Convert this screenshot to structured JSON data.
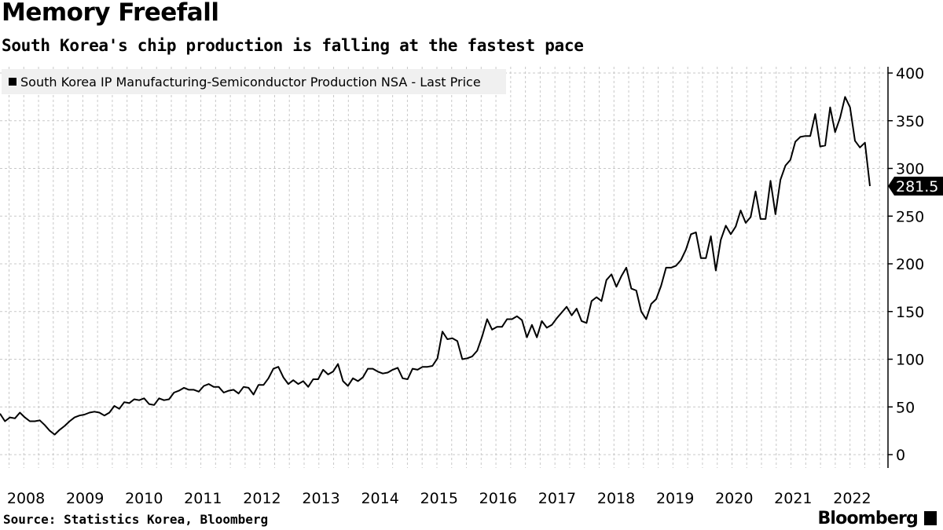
{
  "header": {
    "title": "Memory Freefall",
    "subtitle": "South Korea's chip production is falling at the fastest pace"
  },
  "footer": {
    "source": "Source:  Statistics Korea, Bloomberg",
    "brand": "Bloomberg"
  },
  "chart_data": {
    "type": "line",
    "title": "Memory Freefall",
    "subtitle": "South Korea's chip production is falling at the fastest pace",
    "legend": {
      "label": "South Korea IP Manufacturing-Semiconductor Production NSA - Last Price",
      "placement": "top-left"
    },
    "xlabel": "",
    "ylabel": "",
    "x_frequency": "monthly",
    "x_start": "2008-01",
    "x_ticks": [
      "2008",
      "2009",
      "2010",
      "2011",
      "2012",
      "2013",
      "2014",
      "2015",
      "2016",
      "2017",
      "2018",
      "2019",
      "2020",
      "2021",
      "2022"
    ],
    "y_ticks": [
      0,
      50,
      100,
      150,
      200,
      250,
      300,
      350,
      400
    ],
    "ylim": [
      -10,
      412
    ],
    "grid": true,
    "y_axis_side": "right",
    "last_value_label": "281.5",
    "color": "#000000",
    "series": [
      {
        "name": "South Korea IP Manufacturing-Semiconductor Production NSA - Last Price",
        "values": [
          43,
          35,
          39,
          38,
          44,
          39,
          35,
          35,
          36,
          31,
          25,
          21,
          26,
          30,
          35,
          39,
          41,
          42,
          44,
          45,
          44,
          41,
          44,
          51,
          48,
          55,
          54,
          58,
          57,
          59,
          53,
          52,
          59,
          57,
          58,
          65,
          67,
          70,
          68,
          68,
          66,
          72,
          74,
          71,
          71,
          65,
          67,
          68,
          64,
          71,
          70,
          63,
          73,
          73,
          80,
          90,
          92,
          81,
          74,
          78,
          74,
          77,
          71,
          79,
          79,
          89,
          84,
          87,
          95,
          77,
          72,
          80,
          77,
          81,
          90,
          90,
          87,
          85,
          86,
          89,
          91,
          80,
          79,
          90,
          89,
          92,
          92,
          93,
          101,
          129,
          121,
          122,
          119,
          100,
          101,
          103,
          109,
          124,
          142,
          131,
          134,
          134,
          142,
          142,
          145,
          141,
          123,
          136,
          123,
          140,
          133,
          136,
          143,
          149,
          155,
          146,
          153,
          140,
          138,
          161,
          165,
          161,
          183,
          189,
          176,
          187,
          196,
          174,
          172,
          150,
          142,
          158,
          163,
          177,
          196,
          196,
          198,
          204,
          215,
          231,
          233,
          206,
          206,
          229,
          193,
          225,
          240,
          231,
          239,
          256,
          243,
          249,
          276,
          247,
          247,
          287,
          252,
          288,
          303,
          309,
          328,
          333,
          334,
          334,
          357,
          323,
          324,
          364,
          338,
          353,
          375,
          364,
          329,
          322,
          327,
          281.5
        ]
      }
    ]
  }
}
